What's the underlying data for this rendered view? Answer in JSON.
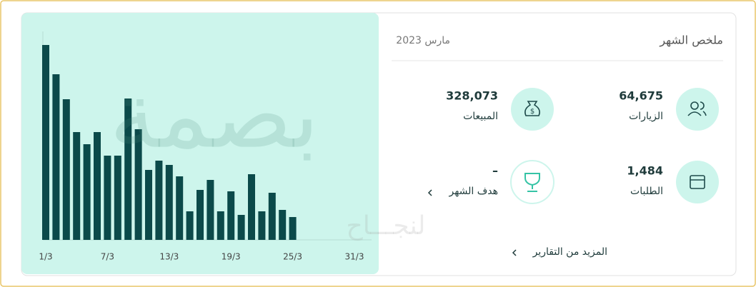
{
  "summary": {
    "title": "ملخص الشهر",
    "date": "مارس 2023",
    "stats": [
      {
        "value": "64,675",
        "label": "الزيارات"
      },
      {
        "value": "328,073",
        "label": "المبيعات"
      },
      {
        "value": "1,484",
        "label": "الطلبات"
      },
      {
        "value": "–",
        "label": "هدف الشهر"
      }
    ],
    "more_link": "المزيد من التقارير"
  },
  "watermark": {
    "brand": "بصمة",
    "slogan": "لنجـــاح"
  },
  "chart_data": {
    "type": "bar",
    "color": "#0b4a4a",
    "categories": [
      "1/3",
      null,
      null,
      null,
      null,
      null,
      "7/3",
      null,
      null,
      null,
      null,
      null,
      "13/3",
      null,
      null,
      null,
      null,
      null,
      "19/3",
      null,
      null,
      null,
      null,
      null,
      "25/3",
      null,
      null,
      null,
      null,
      null,
      "31/3"
    ],
    "values": [
      273,
      232,
      197,
      151,
      134,
      151,
      118,
      118,
      198,
      155,
      98,
      111,
      105,
      89,
      40,
      70,
      84,
      40,
      68,
      35,
      92,
      40,
      66,
      42,
      32,
      null,
      null,
      null,
      null,
      null,
      null
    ],
    "ylim": [
      0,
      290
    ]
  }
}
